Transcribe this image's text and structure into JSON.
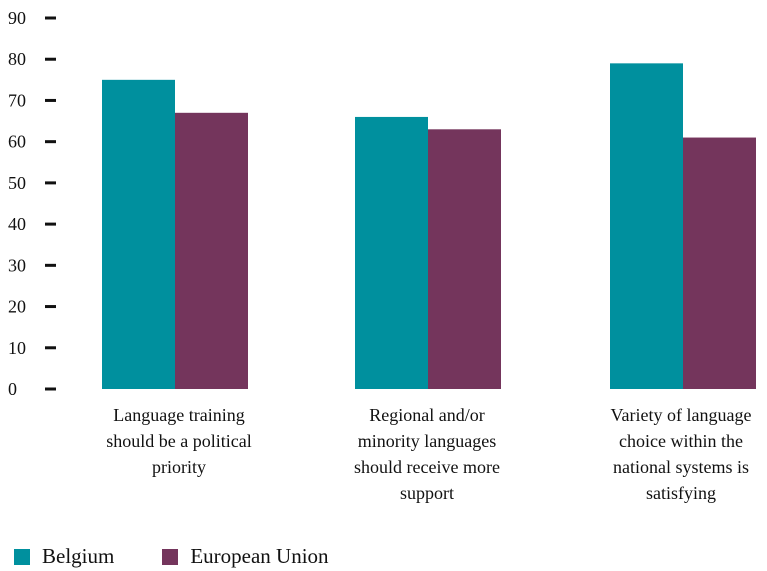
{
  "chart_data": {
    "type": "bar",
    "title": "",
    "xlabel": "",
    "ylabel": "",
    "ylim": [
      0,
      90
    ],
    "yticks": [
      0,
      10,
      20,
      30,
      40,
      50,
      60,
      70,
      80,
      90
    ],
    "grid": false,
    "legend_position": "bottom-left",
    "categories": [
      [
        "Language training",
        "should be a political",
        "priority"
      ],
      [
        "Regional and/or",
        "minority languages",
        "should receive more",
        "support"
      ],
      [
        "Variety of language",
        "choice within the",
        "national systems is",
        "satisfying"
      ]
    ],
    "series": [
      {
        "name": "Belgium",
        "color": "#00909e",
        "values": [
          75,
          66,
          79
        ]
      },
      {
        "name": "European Union",
        "color": "#74355c",
        "values": [
          67,
          63,
          61
        ]
      }
    ]
  }
}
